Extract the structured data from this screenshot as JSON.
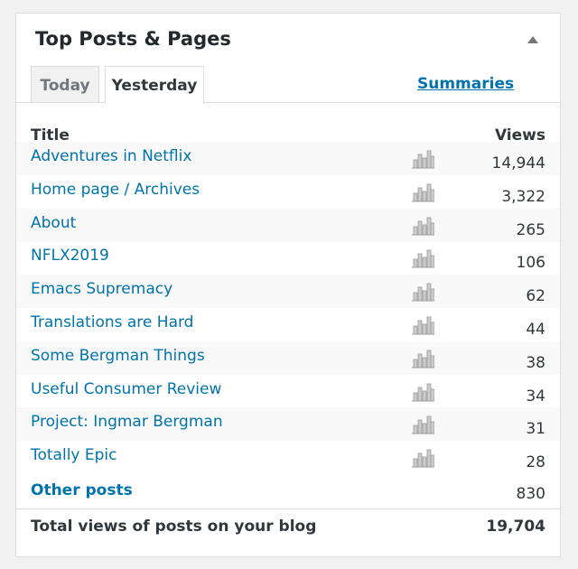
{
  "widget": {
    "title": "Top Posts & Pages",
    "tabs": [
      "Today",
      "Yesterday"
    ],
    "summaries_link": "Summaries",
    "table": {
      "headers": [
        "Title",
        "Views"
      ],
      "rows": [
        [
          "Adventures in Netflix",
          "14,944"
        ],
        [
          "Home page / Archives",
          "3,322"
        ],
        [
          "About",
          "265"
        ],
        [
          "NFLX2019",
          "106"
        ],
        [
          "Emacs Supremacy",
          "62"
        ],
        [
          "Translations are Hard",
          "44"
        ],
        [
          "Some Bergman Things",
          "38"
        ],
        [
          "Useful Consumer Review",
          "34"
        ],
        [
          "Project: Ingmar Bergman",
          "31"
        ],
        [
          "Totally Epic",
          "28"
        ]
      ],
      "other": [
        "Other posts",
        "830"
      ],
      "total": [
        "Total views of posts on your blog",
        "19,704"
      ]
    }
  }
}
